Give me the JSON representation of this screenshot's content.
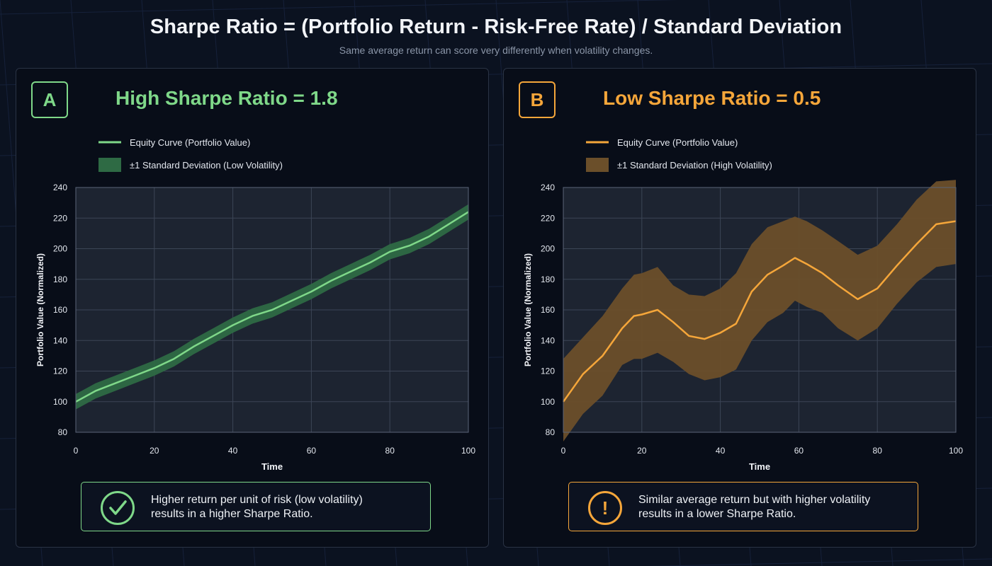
{
  "title": "Sharpe Ratio = (Portfolio Return - Risk-Free Rate) / Standard Deviation",
  "subtitle": "Same average return can score very differently when volatility changes.",
  "colors": {
    "green": "#7fd889",
    "green_band": "#2e6a44",
    "orange": "#f5a63a",
    "orange_band": "#6b4f2a",
    "plot_bg": "#1d2431",
    "grid": "#3c4556"
  },
  "panels": [
    {
      "badge": "A",
      "title": "High Sharpe Ratio = 1.8",
      "accent": "#7fd889",
      "callout_icon": "check-circle-icon",
      "callout_lines": [
        "Higher return per unit of risk (low volatility)",
        "results in a higher Sharpe Ratio."
      ]
    },
    {
      "badge": "B",
      "title": "Low Sharpe Ratio = 0.5",
      "accent": "#f5a63a",
      "callout_icon": "exclamation-circle-icon",
      "callout_lines": [
        "Similar average return but with higher volatility",
        "results in a lower Sharpe Ratio."
      ]
    }
  ],
  "chart_data": [
    {
      "type": "line",
      "title": "High Sharpe Ratio = 1.8",
      "xlabel": "Time",
      "ylabel": "Portfolio Value (Normalized)",
      "xlim": [
        0,
        100
      ],
      "ylim": [
        80,
        240
      ],
      "xticks": [
        0,
        20,
        40,
        60,
        80,
        100
      ],
      "yticks": [
        80,
        100,
        120,
        140,
        160,
        180,
        200,
        220,
        240
      ],
      "grid": true,
      "legend_position": "top",
      "series": [
        {
          "name": "Equity Curve (Portfolio Value)",
          "kind": "line",
          "color": "#7fd889",
          "x": [
            0,
            5,
            10,
            15,
            20,
            25,
            30,
            35,
            40,
            45,
            50,
            55,
            60,
            65,
            70,
            75,
            80,
            85,
            90,
            95,
            100
          ],
          "y": [
            100,
            107,
            112,
            117,
            122,
            128,
            136,
            143,
            150,
            156,
            160,
            166,
            172,
            179,
            185,
            191,
            198,
            202,
            208,
            216,
            224
          ]
        },
        {
          "name": "±1 Standard Deviation (Low Volatility)",
          "kind": "band",
          "color": "#2e6a44",
          "half_width": 5,
          "x": [
            0,
            5,
            10,
            15,
            20,
            25,
            30,
            35,
            40,
            45,
            50,
            55,
            60,
            65,
            70,
            75,
            80,
            85,
            90,
            95,
            100
          ],
          "y": [
            100,
            107,
            112,
            117,
            122,
            128,
            136,
            143,
            150,
            156,
            160,
            166,
            172,
            179,
            185,
            191,
            198,
            202,
            208,
            216,
            224
          ]
        }
      ]
    },
    {
      "type": "line",
      "title": "Low Sharpe Ratio = 0.5",
      "xlabel": "Time",
      "ylabel": "Portfolio Value (Normalized)",
      "xlim": [
        0,
        100
      ],
      "ylim": [
        80,
        240
      ],
      "xticks": [
        0,
        20,
        40,
        60,
        80,
        100
      ],
      "yticks": [
        80,
        100,
        120,
        140,
        160,
        180,
        200,
        220,
        240
      ],
      "grid": true,
      "legend_position": "top",
      "series": [
        {
          "name": "Equity Curve (Portfolio Value)",
          "kind": "line",
          "color": "#f5a63a",
          "x": [
            0,
            5,
            10,
            15,
            18,
            20,
            24,
            28,
            32,
            36,
            40,
            44,
            48,
            52,
            56,
            59,
            62,
            66,
            70,
            75,
            80,
            85,
            90,
            95,
            100
          ],
          "y": [
            100,
            118,
            130,
            148,
            156,
            157,
            160,
            152,
            143,
            141,
            145,
            151,
            172,
            183,
            189,
            194,
            190,
            184,
            176,
            167,
            174,
            189,
            203,
            216,
            218
          ]
        },
        {
          "name": "±1 Standard Deviation (High Volatility)",
          "kind": "band",
          "color": "#6b4f2a",
          "x": [
            0,
            5,
            10,
            15,
            18,
            20,
            24,
            28,
            32,
            36,
            40,
            44,
            48,
            52,
            56,
            59,
            62,
            66,
            70,
            75,
            80,
            85,
            90,
            95,
            100
          ],
          "y": [
            100,
            118,
            130,
            148,
            156,
            157,
            160,
            152,
            143,
            141,
            145,
            151,
            172,
            183,
            189,
            194,
            190,
            184,
            176,
            167,
            174,
            189,
            203,
            216,
            218
          ],
          "upper": [
            128,
            142,
            156,
            174,
            183,
            184,
            188,
            176,
            170,
            169,
            174,
            184,
            203,
            214,
            218,
            221,
            218,
            212,
            205,
            196,
            202,
            216,
            232,
            244,
            245
          ],
          "lower": [
            74,
            92,
            104,
            124,
            128,
            128,
            132,
            126,
            118,
            114,
            116,
            121,
            140,
            152,
            158,
            166,
            162,
            158,
            148,
            140,
            148,
            164,
            178,
            188,
            190
          ]
        }
      ]
    }
  ]
}
